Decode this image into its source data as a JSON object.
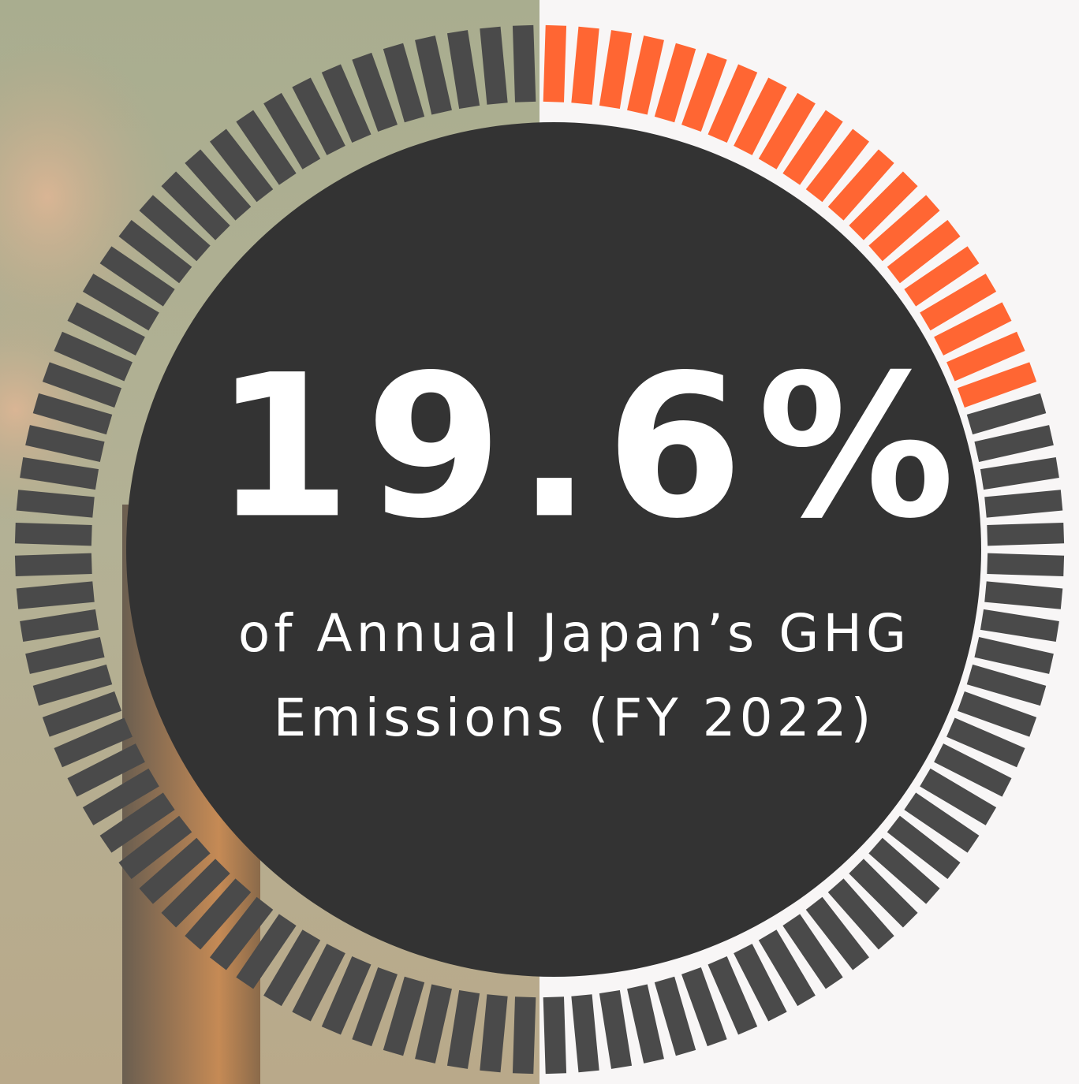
{
  "chart_data": {
    "type": "gauge",
    "value": 19.6,
    "value_label": "19.6%",
    "ylim": [
      0,
      100
    ],
    "segments": 100,
    "color": "#ff6633",
    "track_color": "#4a4a4a",
    "subtitle_lines": [
      "of Annual Japan’s GHG",
      "Emissions (FY 2022)"
    ]
  }
}
